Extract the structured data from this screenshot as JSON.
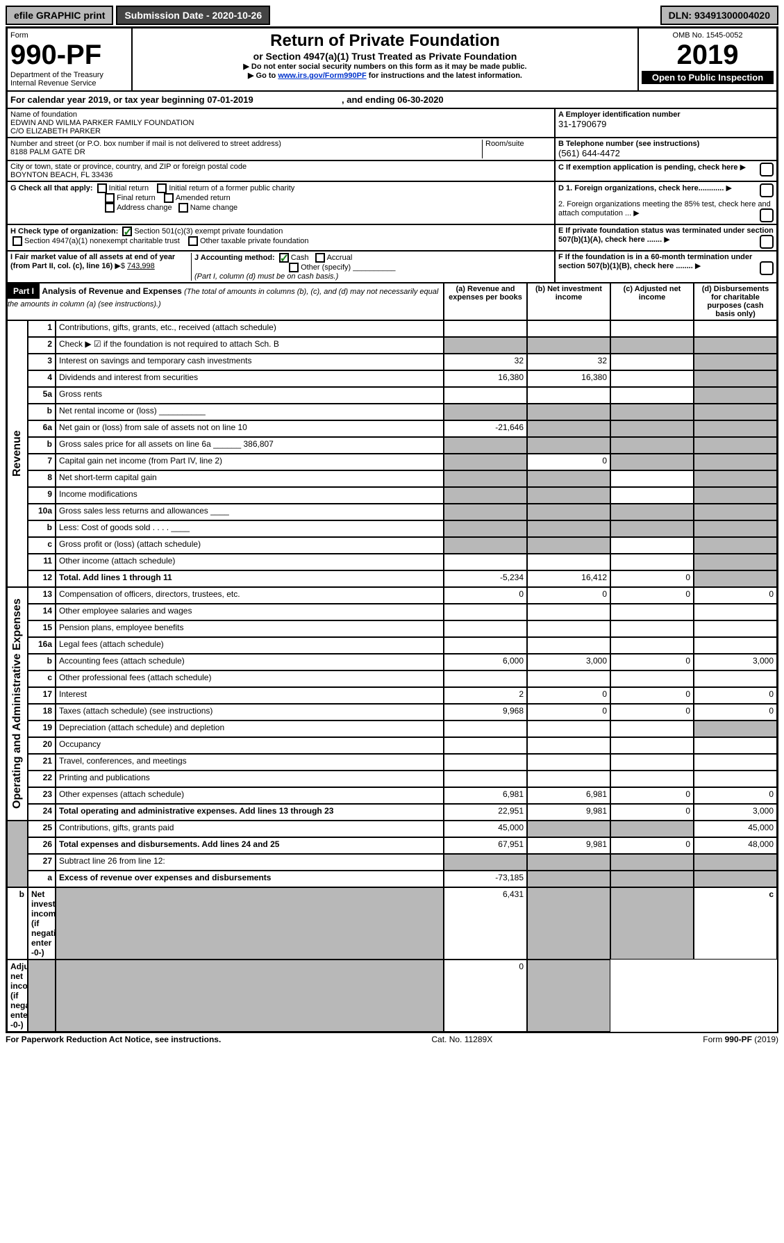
{
  "toolbar": {
    "efile": "efile GRAPHIC print",
    "submission_label": "Submission Date - 2020-10-26",
    "dln": "DLN: 93491300004020"
  },
  "header": {
    "form_word": "Form",
    "form_no": "990-PF",
    "dept": "Department of the Treasury",
    "irs": "Internal Revenue Service",
    "title": "Return of Private Foundation",
    "subtitle": "or Section 4947(a)(1) Trust Treated as Private Foundation",
    "note1": "▶ Do not enter social security numbers on this form as it may be made public.",
    "note2_pre": "▶ Go to ",
    "note2_link": "www.irs.gov/Form990PF",
    "note2_post": " for instructions and the latest information.",
    "omb": "OMB No. 1545-0052",
    "year": "2019",
    "open": "Open to Public Inspection"
  },
  "cal": {
    "label_pre": "For calendar year 2019, or tax year beginning ",
    "begin": "07-01-2019",
    "mid": " , and ending ",
    "end": "06-30-2020"
  },
  "ident": {
    "name_label": "Name of foundation",
    "name1": "EDWIN AND WILMA PARKER FAMILY FOUNDATION",
    "name2": "C/O ELIZABETH PARKER",
    "addr_label": "Number and street (or P.O. box number if mail is not delivered to street address)",
    "addr": "8188 PALM GATE DR",
    "room_label": "Room/suite",
    "city_label": "City or town, state or province, country, and ZIP or foreign postal code",
    "city": "BOYNTON BEACH, FL  33436",
    "a_label": "A Employer identification number",
    "a_val": "31-1790679",
    "b_label": "B Telephone number (see instructions)",
    "b_val": "(561) 644-4472",
    "c_label": "C If exemption application is pending, check here",
    "d1": "D 1. Foreign organizations, check here............",
    "d2": "2. Foreign organizations meeting the 85% test, check here and attach computation ...",
    "e": "E  If private foundation status was terminated under section 507(b)(1)(A), check here .......",
    "f": "F  If the foundation is in a 60-month termination under section 507(b)(1)(B), check here ........"
  },
  "g": {
    "label": "G Check all that apply:",
    "opts": [
      "Initial return",
      "Initial return of a former public charity",
      "Final return",
      "Amended return",
      "Address change",
      "Name change"
    ]
  },
  "h": {
    "label": "H Check type of organization:",
    "o1": "Section 501(c)(3) exempt private foundation",
    "o2": "Section 4947(a)(1) nonexempt charitable trust",
    "o3": "Other taxable private foundation"
  },
  "i": {
    "label": "I Fair market value of all assets at end of year (from Part II, col. (c), line 16)",
    "arrow": "▶$",
    "val": "743,998"
  },
  "j": {
    "label": "J Accounting method:",
    "cash": "Cash",
    "accrual": "Accrual",
    "other": "Other (specify)",
    "note": "(Part I, column (d) must be on cash basis.)"
  },
  "part1": {
    "tag": "Part I",
    "title": "Analysis of Revenue and Expenses",
    "sub": " (The total of amounts in columns (b), (c), and (d) may not necessarily equal the amounts in column (a) (see instructions).)",
    "col_a": "(a)   Revenue and expenses per books",
    "col_b": "(b)  Net investment income",
    "col_c": "(c)  Adjusted net income",
    "col_d": "(d)  Disbursements for charitable purposes (cash basis only)"
  },
  "vcat": {
    "rev": "Revenue",
    "exp": "Operating and Administrative Expenses"
  },
  "rows": [
    {
      "n": "1",
      "t": "Contributions, gifts, grants, etc., received (attach schedule)",
      "a": "",
      "b": "",
      "c": "",
      "d": "",
      "sh": [
        0,
        0,
        0,
        0
      ]
    },
    {
      "n": "2",
      "t": "Check ▶ ☑ if the foundation is not required to attach Sch. B",
      "a": "",
      "b": "",
      "c": "",
      "d": "",
      "sh": [
        1,
        1,
        1,
        1
      ],
      "chk": true
    },
    {
      "n": "3",
      "t": "Interest on savings and temporary cash investments",
      "a": "32",
      "b": "32",
      "c": "",
      "d": "",
      "sh": [
        0,
        0,
        0,
        1
      ]
    },
    {
      "n": "4",
      "t": "Dividends and interest from securities",
      "a": "16,380",
      "b": "16,380",
      "c": "",
      "d": "",
      "sh": [
        0,
        0,
        0,
        1
      ]
    },
    {
      "n": "5a",
      "t": "Gross rents",
      "a": "",
      "b": "",
      "c": "",
      "d": "",
      "sh": [
        0,
        0,
        0,
        1
      ]
    },
    {
      "n": "b",
      "t": "Net rental income or (loss)  __________",
      "a": "",
      "b": "",
      "c": "",
      "d": "",
      "sh": [
        1,
        1,
        1,
        1
      ]
    },
    {
      "n": "6a",
      "t": "Net gain or (loss) from sale of assets not on line 10",
      "a": "-21,646",
      "b": "",
      "c": "",
      "d": "",
      "sh": [
        0,
        1,
        1,
        1
      ]
    },
    {
      "n": "b",
      "t": "Gross sales price for all assets on line 6a ______ 386,807",
      "a": "",
      "b": "",
      "c": "",
      "d": "",
      "sh": [
        1,
        1,
        1,
        1
      ]
    },
    {
      "n": "7",
      "t": "Capital gain net income (from Part IV, line 2)",
      "a": "",
      "b": "0",
      "c": "",
      "d": "",
      "sh": [
        1,
        0,
        1,
        1
      ]
    },
    {
      "n": "8",
      "t": "Net short-term capital gain",
      "a": "",
      "b": "",
      "c": "",
      "d": "",
      "sh": [
        1,
        1,
        0,
        1
      ]
    },
    {
      "n": "9",
      "t": "Income modifications",
      "a": "",
      "b": "",
      "c": "",
      "d": "",
      "sh": [
        1,
        1,
        0,
        1
      ]
    },
    {
      "n": "10a",
      "t": "Gross sales less returns and allowances  ____",
      "a": "",
      "b": "",
      "c": "",
      "d": "",
      "sh": [
        1,
        1,
        1,
        1
      ]
    },
    {
      "n": "b",
      "t": "Less: Cost of goods sold  . . . .  ____",
      "a": "",
      "b": "",
      "c": "",
      "d": "",
      "sh": [
        1,
        1,
        1,
        1
      ]
    },
    {
      "n": "c",
      "t": "Gross profit or (loss) (attach schedule)",
      "a": "",
      "b": "",
      "c": "",
      "d": "",
      "sh": [
        1,
        1,
        0,
        1
      ]
    },
    {
      "n": "11",
      "t": "Other income (attach schedule)",
      "a": "",
      "b": "",
      "c": "",
      "d": "",
      "sh": [
        0,
        0,
        0,
        1
      ]
    },
    {
      "n": "12",
      "t": "Total. Add lines 1 through 11",
      "a": "-5,234",
      "b": "16,412",
      "c": "0",
      "d": "",
      "sh": [
        0,
        0,
        0,
        1
      ],
      "b1": true
    },
    {
      "n": "13",
      "t": "Compensation of officers, directors, trustees, etc.",
      "a": "0",
      "b": "0",
      "c": "0",
      "d": "0",
      "sh": [
        0,
        0,
        0,
        0
      ]
    },
    {
      "n": "14",
      "t": "Other employee salaries and wages",
      "a": "",
      "b": "",
      "c": "",
      "d": "",
      "sh": [
        0,
        0,
        0,
        0
      ]
    },
    {
      "n": "15",
      "t": "Pension plans, employee benefits",
      "a": "",
      "b": "",
      "c": "",
      "d": "",
      "sh": [
        0,
        0,
        0,
        0
      ]
    },
    {
      "n": "16a",
      "t": "Legal fees (attach schedule)",
      "a": "",
      "b": "",
      "c": "",
      "d": "",
      "sh": [
        0,
        0,
        0,
        0
      ]
    },
    {
      "n": "b",
      "t": "Accounting fees (attach schedule)",
      "a": "6,000",
      "b": "3,000",
      "c": "0",
      "d": "3,000",
      "sh": [
        0,
        0,
        0,
        0
      ]
    },
    {
      "n": "c",
      "t": "Other professional fees (attach schedule)",
      "a": "",
      "b": "",
      "c": "",
      "d": "",
      "sh": [
        0,
        0,
        0,
        0
      ]
    },
    {
      "n": "17",
      "t": "Interest",
      "a": "2",
      "b": "0",
      "c": "0",
      "d": "0",
      "sh": [
        0,
        0,
        0,
        0
      ]
    },
    {
      "n": "18",
      "t": "Taxes (attach schedule) (see instructions)",
      "a": "9,968",
      "b": "0",
      "c": "0",
      "d": "0",
      "sh": [
        0,
        0,
        0,
        0
      ]
    },
    {
      "n": "19",
      "t": "Depreciation (attach schedule) and depletion",
      "a": "",
      "b": "",
      "c": "",
      "d": "",
      "sh": [
        0,
        0,
        0,
        1
      ]
    },
    {
      "n": "20",
      "t": "Occupancy",
      "a": "",
      "b": "",
      "c": "",
      "d": "",
      "sh": [
        0,
        0,
        0,
        0
      ]
    },
    {
      "n": "21",
      "t": "Travel, conferences, and meetings",
      "a": "",
      "b": "",
      "c": "",
      "d": "",
      "sh": [
        0,
        0,
        0,
        0
      ]
    },
    {
      "n": "22",
      "t": "Printing and publications",
      "a": "",
      "b": "",
      "c": "",
      "d": "",
      "sh": [
        0,
        0,
        0,
        0
      ]
    },
    {
      "n": "23",
      "t": "Other expenses (attach schedule)",
      "a": "6,981",
      "b": "6,981",
      "c": "0",
      "d": "0",
      "sh": [
        0,
        0,
        0,
        0
      ]
    },
    {
      "n": "24",
      "t": "Total operating and administrative expenses. Add lines 13 through 23",
      "a": "22,951",
      "b": "9,981",
      "c": "0",
      "d": "3,000",
      "sh": [
        0,
        0,
        0,
        0
      ],
      "b1": true
    },
    {
      "n": "25",
      "t": "Contributions, gifts, grants paid",
      "a": "45,000",
      "b": "",
      "c": "",
      "d": "45,000",
      "sh": [
        0,
        1,
        1,
        0
      ]
    },
    {
      "n": "26",
      "t": "Total expenses and disbursements. Add lines 24 and 25",
      "a": "67,951",
      "b": "9,981",
      "c": "0",
      "d": "48,000",
      "sh": [
        0,
        0,
        0,
        0
      ],
      "b1": true
    },
    {
      "n": "27",
      "t": "Subtract line 26 from line 12:",
      "a": "",
      "b": "",
      "c": "",
      "d": "",
      "sh": [
        1,
        1,
        1,
        1
      ]
    },
    {
      "n": "a",
      "t": "Excess of revenue over expenses and disbursements",
      "a": "-73,185",
      "b": "",
      "c": "",
      "d": "",
      "sh": [
        0,
        1,
        1,
        1
      ],
      "b1": true
    },
    {
      "n": "b",
      "t": "Net investment income (if negative, enter -0-)",
      "a": "",
      "b": "6,431",
      "c": "",
      "d": "",
      "sh": [
        1,
        0,
        1,
        1
      ],
      "b1": true
    },
    {
      "n": "c",
      "t": "Adjusted net income (if negative, enter -0-)",
      "a": "",
      "b": "",
      "c": "0",
      "d": "",
      "sh": [
        1,
        1,
        0,
        1
      ],
      "b1": true
    }
  ],
  "footer": {
    "left": "For Paperwork Reduction Act Notice, see instructions.",
    "mid": "Cat. No. 11289X",
    "right": "Form 990-PF (2019)"
  }
}
